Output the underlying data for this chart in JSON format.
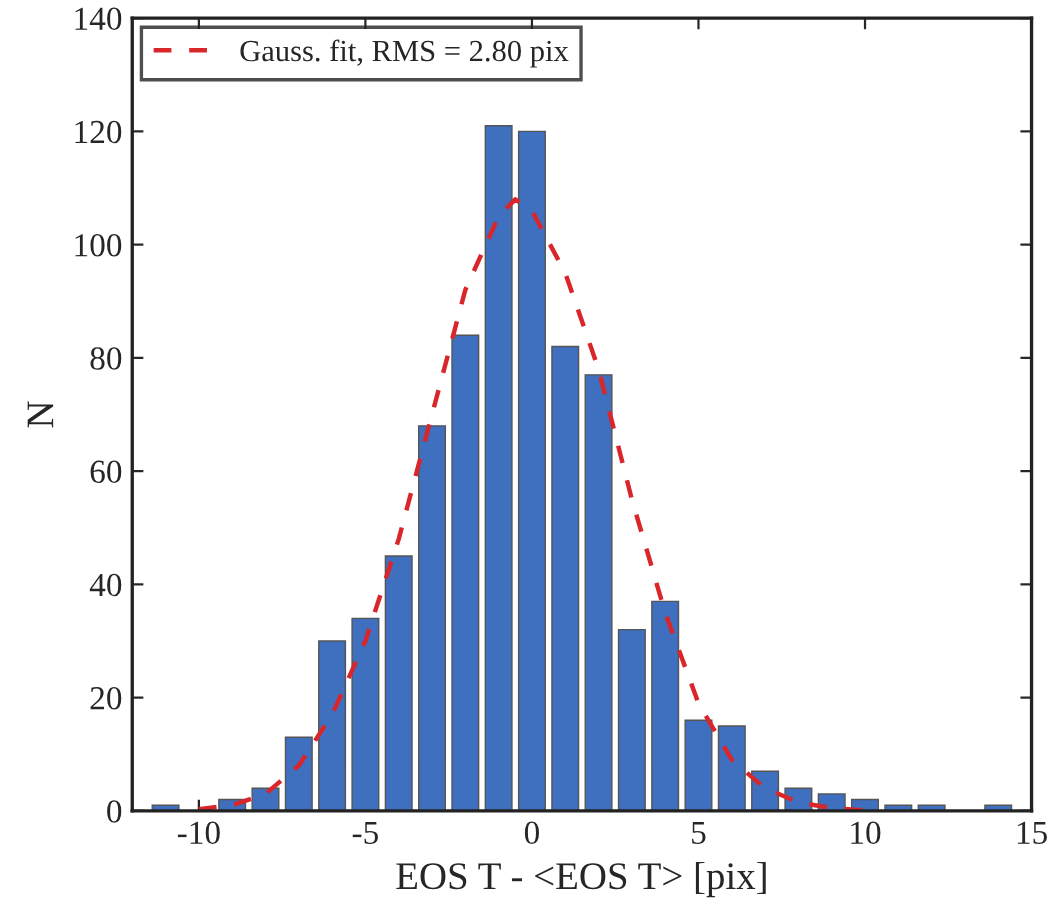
{
  "chart_data": {
    "type": "histogram",
    "xlabel": "EOS T - <EOS T> [pix]",
    "ylabel": "N",
    "bins": [
      -11.5,
      -10.5,
      -9.5,
      -8.5,
      -7.5,
      -6.5,
      -5.5,
      -4.5,
      -3.5,
      -2.5,
      -1.5,
      -0.5,
      0.5,
      1.5,
      2.5,
      3.5,
      4.5,
      5.5,
      6.5,
      7.5,
      8.5,
      9.5,
      10.5,
      11.5,
      12.5,
      13.5,
      14.5
    ],
    "values": [
      1,
      0,
      2,
      4,
      13,
      30,
      34,
      45,
      68,
      84,
      121,
      120,
      82,
      77,
      32,
      37,
      16,
      15,
      7,
      4,
      3,
      2,
      1,
      1,
      0,
      1
    ],
    "color": "#3f6fbf",
    "series": [
      {
        "type": "line",
        "name": "Gauss. fit, RMS = 2.80 pix",
        "color": "#d9262b",
        "line_style": "dashed",
        "x": [
          -10,
          -9,
          -8,
          -7,
          -6,
          -5,
          -4,
          -3,
          -2,
          -1,
          -0.5,
          0,
          1,
          2,
          3,
          4,
          5,
          6,
          7,
          8,
          9,
          10
        ],
        "values": [
          0.3,
          1,
          3,
          8,
          17,
          30,
          48,
          70,
          92,
          105,
          108,
          106,
          95,
          78,
          55,
          35,
          19,
          9,
          4,
          1.5,
          0.5,
          0.1
        ]
      }
    ],
    "xlim": [
      -12,
      15
    ],
    "xticks": [
      -10,
      -5,
      0,
      5,
      10,
      15
    ],
    "ylim": [
      0,
      140
    ],
    "yticks": [
      0,
      20,
      40,
      60,
      80,
      100,
      120,
      140
    ],
    "legend": "top left",
    "grid": false
  }
}
